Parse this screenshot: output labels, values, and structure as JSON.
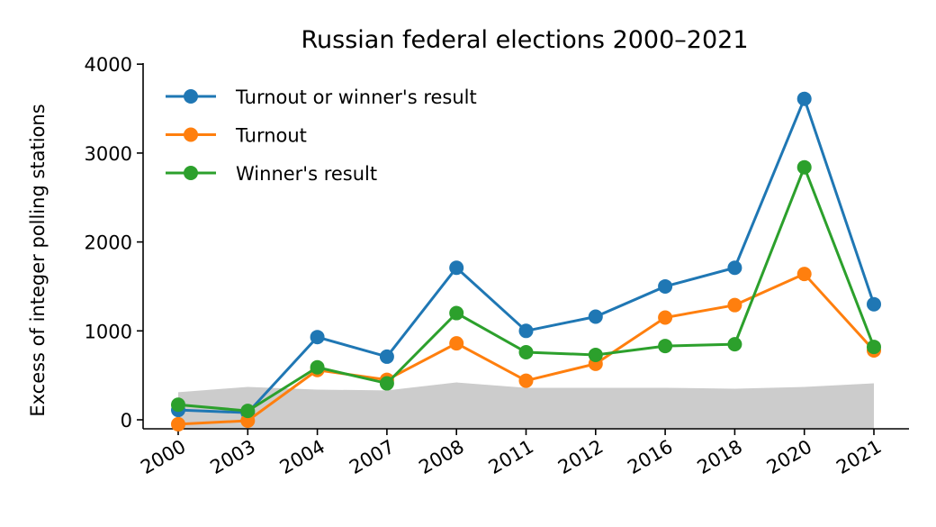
{
  "chart_data": {
    "type": "line",
    "title": "Russian federal elections 2000–2021",
    "xlabel": "",
    "ylabel": "Excess of integer polling stations",
    "categories": [
      "2000",
      "2003",
      "2004",
      "2007",
      "2008",
      "2011",
      "2012",
      "2016",
      "2018",
      "2020",
      "2021"
    ],
    "ylim": [
      -100,
      4000
    ],
    "yticks": [
      0,
      1000,
      2000,
      3000,
      4000
    ],
    "legend_position": "top-left",
    "grid": false,
    "series": [
      {
        "name": "Turnout or winner's result",
        "color": "#1f77b4",
        "values": [
          110,
          80,
          930,
          710,
          1710,
          1000,
          1160,
          1500,
          1710,
          3610,
          1300
        ]
      },
      {
        "name": "Turnout",
        "color": "#ff7f0e",
        "values": [
          -50,
          -10,
          560,
          450,
          860,
          440,
          630,
          1150,
          1290,
          1640,
          780
        ]
      },
      {
        "name": "Winner's result",
        "color": "#2ca02c",
        "values": [
          170,
          100,
          590,
          410,
          1200,
          760,
          730,
          830,
          850,
          2840,
          820
        ]
      }
    ],
    "band": {
      "color": "#cccccc",
      "values": [
        310,
        370,
        340,
        330,
        420,
        360,
        360,
        360,
        350,
        370,
        410
      ]
    }
  }
}
